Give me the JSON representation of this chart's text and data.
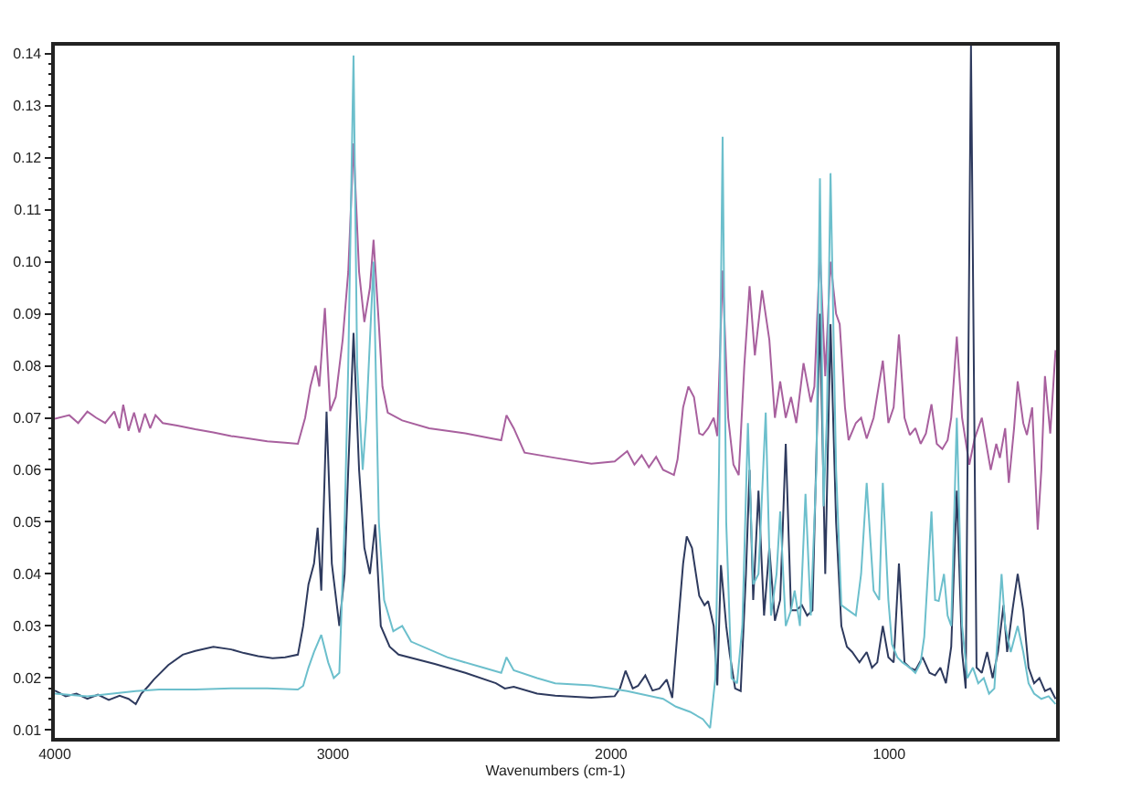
{
  "chart_data": {
    "type": "line",
    "xlabel": "Wavenumbers (cm-1)",
    "xlim": [
      4000,
      400
    ],
    "xticks": [
      4000,
      3000,
      2000,
      1000
    ],
    "ylim": [
      0.0085,
      0.1415
    ],
    "yticks": [
      0.01,
      0.02,
      0.03,
      0.04,
      0.05,
      0.06,
      0.07,
      0.08,
      0.09,
      {
        "value": 0.1,
        "label": "0.10"
      },
      0.11,
      0.12,
      0.13,
      0.14,
      {
        "value": 0.012,
        "label": null
      },
      {
        "value": 0.014,
        "label": null
      },
      {
        "value": 0.016,
        "label": null
      },
      {
        "value": 0.018,
        "label": null
      },
      {
        "value": 0.022,
        "label": null
      },
      {
        "value": 0.024,
        "label": null
      },
      {
        "value": 0.026,
        "label": null
      },
      {
        "value": 0.028,
        "label": null
      },
      {
        "value": 0.032,
        "label": null
      },
      {
        "value": 0.034,
        "label": null
      },
      {
        "value": 0.036,
        "label": null
      },
      {
        "value": 0.038,
        "label": null
      },
      {
        "value": 0.042,
        "label": null
      },
      {
        "value": 0.044,
        "label": null
      },
      {
        "value": 0.046,
        "label": null
      },
      {
        "value": 0.048,
        "label": null
      },
      {
        "value": 0.052,
        "label": null
      },
      {
        "value": 0.054,
        "label": null
      },
      {
        "value": 0.056,
        "label": null
      },
      {
        "value": 0.058,
        "label": null
      },
      {
        "value": 0.062,
        "label": null
      },
      {
        "value": 0.064,
        "label": null
      },
      {
        "value": 0.066,
        "label": null
      },
      {
        "value": 0.068,
        "label": null
      },
      {
        "value": 0.072,
        "label": null
      },
      {
        "value": 0.074,
        "label": null
      },
      {
        "value": 0.076,
        "label": null
      },
      {
        "value": 0.078,
        "label": null
      },
      {
        "value": 0.082,
        "label": null
      },
      {
        "value": 0.084,
        "label": null
      },
      {
        "value": 0.086,
        "label": null
      },
      {
        "value": 0.088,
        "label": null
      },
      {
        "value": 0.092,
        "label": null
      },
      {
        "value": 0.094,
        "label": null
      },
      {
        "value": 0.096,
        "label": null
      },
      {
        "value": 0.098,
        "label": null
      },
      {
        "value": 0.102,
        "label": null
      },
      {
        "value": 0.104,
        "label": null
      },
      {
        "value": 0.106,
        "label": null
      },
      {
        "value": 0.108,
        "label": null
      },
      {
        "value": 0.112,
        "label": null
      },
      {
        "value": 0.114,
        "label": null
      },
      {
        "value": 0.116,
        "label": null
      },
      {
        "value": 0.118,
        "label": null
      },
      {
        "value": 0.122,
        "label": null
      },
      {
        "value": 0.124,
        "label": null
      },
      {
        "value": 0.126,
        "label": null
      },
      {
        "value": 0.128,
        "label": null
      },
      {
        "value": 0.132,
        "label": null
      },
      {
        "value": 0.134,
        "label": null
      },
      {
        "value": 0.136,
        "label": null
      },
      {
        "value": 0.138,
        "label": null
      }
    ],
    "series": [
      {
        "color": "#a8609e",
        "x": [
          4000,
          3948,
          3916,
          3883,
          3851,
          3819,
          3786,
          3767,
          3754,
          3735,
          3715,
          3696,
          3676,
          3657,
          3638,
          3612,
          3560,
          3495,
          3430,
          3366,
          3301,
          3236,
          3172,
          3126,
          3100,
          3081,
          3062,
          3049,
          3029,
          3010,
          2990,
          2965,
          2945,
          2926,
          2906,
          2887,
          2867,
          2854,
          2835,
          2822,
          2803,
          2751,
          2654,
          2524,
          2427,
          2395,
          2376,
          2350,
          2311,
          2201,
          2071,
          1987,
          1942,
          1916,
          1890,
          1864,
          1838,
          1813,
          1774,
          1761,
          1741,
          1722,
          1702,
          1683,
          1670,
          1651,
          1631,
          1618,
          1599,
          1579,
          1560,
          1541,
          1521,
          1502,
          1483,
          1457,
          1431,
          1411,
          1392,
          1372,
          1353,
          1334,
          1308,
          1282,
          1269,
          1249,
          1230,
          1211,
          1191,
          1178,
          1159,
          1146,
          1120,
          1101,
          1081,
          1056,
          1023,
          1003,
          984,
          965,
          945,
          926,
          906,
          887,
          868,
          848,
          829,
          809,
          790,
          777,
          757,
          738,
          712,
          693,
          667,
          648,
          635,
          615,
          602,
          583,
          570,
          551,
          538,
          518,
          505,
          486,
          466,
          453,
          440,
          421,
          402
        ],
        "values": [
          0.0698,
          0.0705,
          0.069,
          0.0712,
          0.07,
          0.069,
          0.0712,
          0.068,
          0.0725,
          0.0675,
          0.071,
          0.0672,
          0.0708,
          0.068,
          0.0705,
          0.069,
          0.0685,
          0.0678,
          0.0672,
          0.0665,
          0.066,
          0.0655,
          0.0652,
          0.065,
          0.07,
          0.076,
          0.08,
          0.076,
          0.0911,
          0.0713,
          0.074,
          0.085,
          0.098,
          0.1227,
          0.098,
          0.0884,
          0.095,
          0.1042,
          0.088,
          0.076,
          0.071,
          0.0695,
          0.068,
          0.067,
          0.066,
          0.0657,
          0.0705,
          0.068,
          0.0633,
          0.0623,
          0.0612,
          0.0616,
          0.0636,
          0.061,
          0.0628,
          0.0605,
          0.0625,
          0.06,
          0.059,
          0.062,
          0.072,
          0.076,
          0.074,
          0.067,
          0.0667,
          0.068,
          0.07,
          0.0665,
          0.0983,
          0.07,
          0.061,
          0.059,
          0.08,
          0.0953,
          0.082,
          0.0945,
          0.085,
          0.07,
          0.077,
          0.07,
          0.074,
          0.069,
          0.0805,
          0.073,
          0.076,
          0.102,
          0.078,
          0.1,
          0.09,
          0.088,
          0.072,
          0.0657,
          0.069,
          0.07,
          0.066,
          0.07,
          0.081,
          0.069,
          0.072,
          0.086,
          0.07,
          0.0667,
          0.068,
          0.065,
          0.067,
          0.0726,
          0.065,
          0.064,
          0.0657,
          0.07,
          0.0856,
          0.07,
          0.061,
          0.066,
          0.07,
          0.064,
          0.06,
          0.065,
          0.0623,
          0.068,
          0.0575,
          0.068,
          0.077,
          0.069,
          0.0667,
          0.072,
          0.0485,
          0.06,
          0.078,
          0.067,
          0.083
        ]
      },
      {
        "color": "#2e3a5e",
        "x": [
          4000,
          3961,
          3922,
          3883,
          3845,
          3806,
          3767,
          3735,
          3709,
          3689,
          3663,
          3644,
          3592,
          3540,
          3495,
          3430,
          3366,
          3320,
          3269,
          3217,
          3172,
          3126,
          3107,
          3088,
          3068,
          3055,
          3042,
          3023,
          3004,
          2977,
          2958,
          2945,
          2926,
          2906,
          2887,
          2867,
          2848,
          2828,
          2796,
          2764,
          2634,
          2524,
          2414,
          2382,
          2350,
          2266,
          2201,
          2071,
          1987,
          1968,
          1948,
          1922,
          1903,
          1877,
          1851,
          1826,
          1800,
          1780,
          1761,
          1741,
          1728,
          1709,
          1683,
          1664,
          1651,
          1631,
          1618,
          1605,
          1586,
          1573,
          1554,
          1534,
          1515,
          1502,
          1489,
          1470,
          1450,
          1431,
          1411,
          1392,
          1372,
          1353,
          1334,
          1314,
          1295,
          1276,
          1249,
          1230,
          1211,
          1191,
          1172,
          1152,
          1133,
          1107,
          1081,
          1062,
          1043,
          1023,
          1003,
          984,
          965,
          945,
          926,
          906,
          880,
          855,
          835,
          816,
          796,
          777,
          757,
          738,
          725,
          706,
          686,
          667,
          648,
          628,
          609,
          589,
          576,
          557,
          538,
          518,
          499,
          479,
          460,
          440,
          421,
          402
        ],
        "values": [
          0.0176,
          0.0165,
          0.017,
          0.016,
          0.0168,
          0.0158,
          0.0166,
          0.016,
          0.015,
          0.017,
          0.0185,
          0.0197,
          0.0225,
          0.0245,
          0.0252,
          0.026,
          0.0255,
          0.0248,
          0.0242,
          0.0238,
          0.024,
          0.0245,
          0.03,
          0.038,
          0.042,
          0.0489,
          0.0368,
          0.0712,
          0.042,
          0.03,
          0.04,
          0.06,
          0.0863,
          0.06,
          0.045,
          0.04,
          0.0495,
          0.03,
          0.026,
          0.0245,
          0.0227,
          0.021,
          0.019,
          0.018,
          0.0183,
          0.017,
          0.0166,
          0.0162,
          0.0165,
          0.018,
          0.0214,
          0.018,
          0.0185,
          0.0205,
          0.0176,
          0.018,
          0.0197,
          0.0162,
          0.029,
          0.042,
          0.0472,
          0.045,
          0.0358,
          0.034,
          0.0348,
          0.03,
          0.0186,
          0.0417,
          0.03,
          0.0245,
          0.018,
          0.0175,
          0.04,
          0.06,
          0.035,
          0.056,
          0.032,
          0.045,
          0.031,
          0.035,
          0.065,
          0.033,
          0.033,
          0.034,
          0.032,
          0.033,
          0.09,
          0.04,
          0.088,
          0.05,
          0.03,
          0.026,
          0.025,
          0.023,
          0.025,
          0.022,
          0.023,
          0.03,
          0.024,
          0.023,
          0.042,
          0.023,
          0.022,
          0.0215,
          0.024,
          0.021,
          0.0205,
          0.022,
          0.019,
          0.026,
          0.056,
          0.025,
          0.018,
          0.1415,
          0.022,
          0.021,
          0.025,
          0.02,
          0.025,
          0.034,
          0.025,
          0.033,
          0.04,
          0.033,
          0.022,
          0.019,
          0.02,
          0.0175,
          0.018,
          0.016
        ]
      },
      {
        "color": "#6cbfcc",
        "x": [
          4000,
          3883,
          3709,
          3625,
          3495,
          3366,
          3236,
          3126,
          3107,
          3088,
          3068,
          3042,
          3017,
          2997,
          2977,
          2958,
          2945,
          2926,
          2913,
          2893,
          2880,
          2854,
          2835,
          2816,
          2783,
          2751,
          2719,
          2589,
          2460,
          2395,
          2376,
          2350,
          2266,
          2201,
          2071,
          1942,
          1813,
          1767,
          1716,
          1670,
          1644,
          1625,
          1612,
          1599,
          1586,
          1567,
          1547,
          1528,
          1508,
          1489,
          1470,
          1444,
          1425,
          1405,
          1392,
          1372,
          1353,
          1340,
          1321,
          1301,
          1282,
          1262,
          1249,
          1236,
          1224,
          1211,
          1191,
          1172,
          1146,
          1120,
          1101,
          1081,
          1056,
          1036,
          1023,
          1003,
          990,
          971,
          952,
          926,
          906,
          887,
          874,
          848,
          835,
          822,
          803,
          790,
          777,
          757,
          738,
          719,
          699,
          680,
          660,
          641,
          622,
          596,
          583,
          563,
          538,
          518,
          499,
          479,
          453,
          427,
          402
        ],
        "values": [
          0.017,
          0.0165,
          0.0175,
          0.0178,
          0.0178,
          0.018,
          0.018,
          0.0178,
          0.0185,
          0.022,
          0.025,
          0.0283,
          0.023,
          0.02,
          0.021,
          0.05,
          0.08,
          0.1396,
          0.08,
          0.06,
          0.07,
          0.1,
          0.05,
          0.035,
          0.029,
          0.03,
          0.027,
          0.024,
          0.022,
          0.021,
          0.024,
          0.0215,
          0.02,
          0.019,
          0.0186,
          0.0175,
          0.016,
          0.0145,
          0.0135,
          0.0121,
          0.0104,
          0.02,
          0.06,
          0.124,
          0.05,
          0.02,
          0.019,
          0.03,
          0.069,
          0.038,
          0.04,
          0.071,
          0.032,
          0.04,
          0.052,
          0.03,
          0.033,
          0.0368,
          0.03,
          0.0554,
          0.032,
          0.06,
          0.116,
          0.053,
          0.07,
          0.117,
          0.06,
          0.034,
          0.033,
          0.032,
          0.04,
          0.0575,
          0.0368,
          0.035,
          0.0575,
          0.035,
          0.0265,
          0.024,
          0.023,
          0.022,
          0.021,
          0.023,
          0.0279,
          0.052,
          0.035,
          0.0348,
          0.04,
          0.032,
          0.03,
          0.07,
          0.03,
          0.02,
          0.022,
          0.019,
          0.02,
          0.017,
          0.018,
          0.04,
          0.03,
          0.025,
          0.03,
          0.025,
          0.019,
          0.017,
          0.016,
          0.0165,
          0.015
        ]
      }
    ]
  }
}
